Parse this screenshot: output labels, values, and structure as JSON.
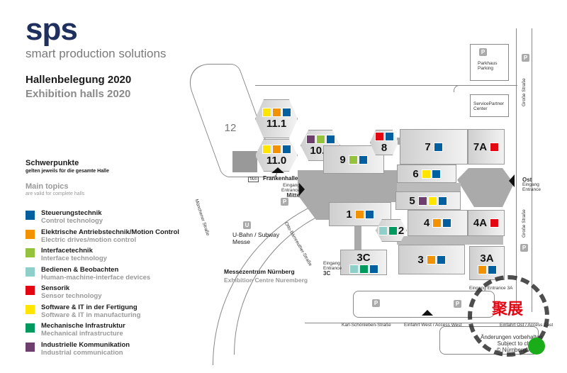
{
  "header": {
    "logo": "sps",
    "tagline": "smart production solutions",
    "title_de": "Hallenbelegung 2020",
    "title_en": "Exhibition halls 2020"
  },
  "legend": {
    "title_de": "Schwerpunkte",
    "subtitle_de": "gelten jeweils für die gesamte Halle",
    "title_en": "Main topics",
    "subtitle_en": "are valid for complete halls",
    "items": [
      {
        "de": "Steuerungstechnik",
        "en": "Control technology",
        "color": "#005f9e"
      },
      {
        "de": "Elektrische Antriebstechnik/Motion Control",
        "en": "Electric drives/motion control",
        "color": "#f39200"
      },
      {
        "de": "Interfacetechnik",
        "en": "Interface technology",
        "color": "#95c23d"
      },
      {
        "de": "Bedienen & Beobachten",
        "en": "Human-machine-interface devices",
        "color": "#8ecfc9"
      },
      {
        "de": "Sensorik",
        "en": "Sensor technology",
        "color": "#e30613"
      },
      {
        "de": "Software & IT in der Fertigung",
        "en": "Software & IT in manufacturing",
        "color": "#ffe500"
      },
      {
        "de": "Mechanische Infrastruktur",
        "en": "Mechanical infrastructure",
        "color": "#009a5e"
      },
      {
        "de": "Industrielle Kommunikation",
        "en": "Industrial communication",
        "color": "#6e3f6e"
      }
    ]
  },
  "halls": [
    {
      "id": "11.1",
      "topics": [
        "#ffe500",
        "#f39200",
        "#005f9e"
      ]
    },
    {
      "id": "11.0",
      "topics": [
        "#ffe500",
        "#f39200",
        "#005f9e"
      ]
    },
    {
      "id": "10.0",
      "topics": [
        "#6e3f6e",
        "#95c23d",
        "#005f9e"
      ]
    },
    {
      "id": "9",
      "topics": [
        "#95c23d",
        "#005f9e"
      ]
    },
    {
      "id": "8",
      "topics": [
        "#e30613",
        "#005f9e"
      ]
    },
    {
      "id": "7",
      "topics": [
        "#005f9e"
      ]
    },
    {
      "id": "7A",
      "topics": [
        "#e30613"
      ]
    },
    {
      "id": "6",
      "topics": [
        "#ffe500",
        "#005f9e"
      ]
    },
    {
      "id": "5",
      "topics": [
        "#6e3f6e",
        "#ffe500",
        "#005f9e"
      ]
    },
    {
      "id": "4",
      "topics": [
        "#f39200",
        "#005f9e"
      ]
    },
    {
      "id": "4A",
      "topics": [
        "#e30613"
      ]
    },
    {
      "id": "1",
      "topics": [
        "#f39200",
        "#005f9e"
      ]
    },
    {
      "id": "2",
      "topics": [
        "#8ecfc9",
        "#009a5e"
      ]
    },
    {
      "id": "3C",
      "topics": [
        "#8ecfc9",
        "#009a5e",
        "#005f9e"
      ]
    },
    {
      "id": "3",
      "topics": [
        "#f39200",
        "#005f9e"
      ]
    },
    {
      "id": "3A",
      "topics": [
        "#f39200",
        "#005f9e"
      ]
    },
    {
      "id": "12",
      "topics": []
    }
  ],
  "map": {
    "frankenhalle": "Frankenhalle",
    "taxi": "TAXI",
    "mitte": {
      "l1": "Eingang",
      "l2": "Entrance",
      "name": "Mitte"
    },
    "ost": {
      "name": "Ost",
      "l1": "Eingang",
      "l2": "Entrance"
    },
    "entrance_3c": {
      "l1": "Eingang",
      "l2": "Entrance",
      "name": "3C"
    },
    "entrance_3a": "Eingang Entrance 3A",
    "parkhaus": {
      "l1": "Parkhaus",
      "l2": "Parking"
    },
    "service": {
      "l1": "ServicePartner",
      "l2": "Center"
    },
    "grosse_strasse": "Große Straße",
    "muenchener": "Münchener Straße",
    "otto": "Otto-Bärnreuther-Straße",
    "karl": "Karl-Schönleben-Straße",
    "access_west": "Einfahrt West / Access West",
    "access_east": "Einfahrt Ost / Access East",
    "ubahn": {
      "icon": "U",
      "l1": "U-Bahn / Subway",
      "l2": "Messe"
    },
    "parking_icon": "P",
    "centre_de": "Messezentrum Nürnberg",
    "centre_en": "Exhibition Centre Nuremberg",
    "disclaimer": {
      "l1": "Änderungen vorbehalten",
      "l2": "Subject to change",
      "l3": "© NürnbergMesse"
    },
    "watermark": "聚展"
  }
}
